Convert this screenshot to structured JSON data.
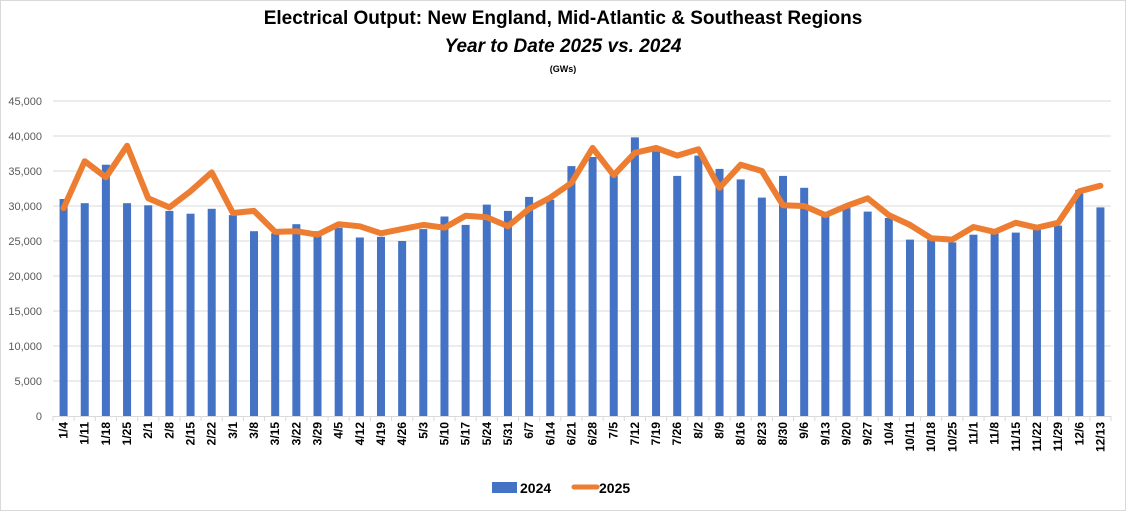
{
  "chart_data": {
    "type": "bar+line",
    "title": "Electrical Output:  New England, Mid-Atlantic & Southeast Regions",
    "subtitle": "Year to Date 2025 vs. 2024",
    "units_label": "(GWs)",
    "xlabel": "",
    "ylabel": "",
    "ylim": [
      0,
      45000
    ],
    "yticks": [
      0,
      5000,
      10000,
      15000,
      20000,
      25000,
      30000,
      35000,
      40000,
      45000
    ],
    "ytick_labels": [
      "0",
      "5,000",
      "10,000",
      "15,000",
      "20,000",
      "25,000",
      "30,000",
      "35,000",
      "40,000",
      "45,000"
    ],
    "grid": true,
    "legend_position": "bottom",
    "categories": [
      "1/4",
      "1/11",
      "1/18",
      "1/25",
      "2/1",
      "2/8",
      "2/15",
      "2/22",
      "3/1",
      "3/8",
      "3/15",
      "3/22",
      "3/29",
      "4/5",
      "4/12",
      "4/19",
      "4/26",
      "5/3",
      "5/10",
      "5/17",
      "5/24",
      "5/31",
      "6/7",
      "6/14",
      "6/21",
      "6/28",
      "7/5",
      "7/12",
      "7/19",
      "7/26",
      "8/2",
      "8/9",
      "8/16",
      "8/23",
      "8/30",
      "9/6",
      "9/13",
      "9/20",
      "9/27",
      "10/4",
      "10/11",
      "10/18",
      "10/25",
      "11/1",
      "11/8",
      "11/15",
      "11/22",
      "11/29",
      "12/6",
      "12/13"
    ],
    "series": [
      {
        "name": "2024",
        "type": "bar",
        "color": "#4472c4",
        "values": [
          31000,
          30400,
          35900,
          30400,
          30100,
          29300,
          28900,
          29600,
          28700,
          26400,
          26100,
          27400,
          26400,
          26900,
          25500,
          25600,
          25000,
          26700,
          28500,
          27300,
          30200,
          29300,
          31300,
          30900,
          35700,
          37000,
          34400,
          39800,
          37800,
          34300,
          37200,
          35300,
          33800,
          31200,
          34300,
          32600,
          28500,
          29700,
          29200,
          28300,
          25200,
          25200,
          24800,
          25900,
          26700,
          26200,
          26600,
          27200,
          32300,
          29800
        ]
      },
      {
        "name": "2025",
        "type": "line",
        "color": "#ed7d31",
        "values": [
          29700,
          36400,
          34100,
          38600,
          31100,
          29800,
          32100,
          34800,
          29000,
          29300,
          26300,
          26400,
          25900,
          27400,
          27100,
          26100,
          26700,
          27300,
          26900,
          28600,
          28400,
          27100,
          29600,
          31200,
          33300,
          38300,
          34400,
          37600,
          38300,
          37200,
          38100,
          32600,
          35900,
          35000,
          30100,
          30000,
          28700,
          30000,
          31100,
          28700,
          27300,
          25400,
          25200,
          27000,
          26300,
          27600,
          26900,
          27600,
          32100,
          32900
        ]
      }
    ]
  }
}
